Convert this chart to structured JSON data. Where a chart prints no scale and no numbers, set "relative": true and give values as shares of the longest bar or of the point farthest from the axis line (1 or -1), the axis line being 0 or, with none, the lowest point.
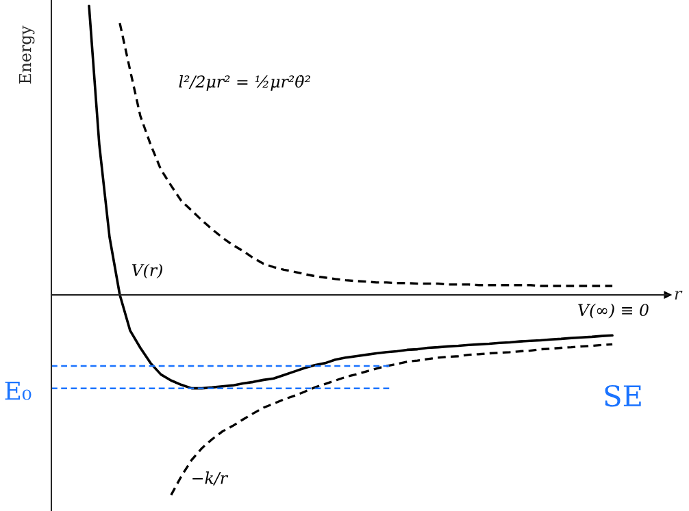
{
  "chart_data": {
    "type": "line",
    "relative": true,
    "ylabel": "Energy",
    "xlabel": "r",
    "categories": [
      null,
      null,
      null,
      null,
      null,
      null,
      null,
      null,
      null,
      null,
      null,
      null,
      null,
      null,
      null,
      null,
      null,
      null,
      null,
      null,
      null,
      null,
      null,
      null,
      null,
      null,
      null,
      null,
      null,
      null,
      null,
      null,
      null,
      null,
      null,
      null,
      null,
      null,
      null,
      null,
      null,
      null,
      null,
      null,
      null,
      null,
      null,
      null,
      null,
      null,
      null,
      null
    ],
    "series": [
      {
        "name": "V(r)",
        "color": "#000000",
        "line_style": "solid",
        "values": [
          1.0,
          0.52,
          0.2,
          0,
          -0.123,
          -0.183,
          -0.236,
          -0.275,
          -0.296,
          -0.311,
          -0.323,
          -0.323,
          -0.32,
          -0.316,
          -0.313,
          -0.306,
          -0.301,
          -0.294,
          -0.289,
          -0.277,
          -0.265,
          -0.253,
          -0.243,
          -0.236,
          -0.224,
          -0.217,
          -0.212,
          -0.207,
          -0.202,
          -0.198,
          -0.195,
          -0.19,
          -0.188,
          -0.183,
          -0.181,
          -0.178,
          -0.176,
          -0.173,
          -0.171,
          -0.169,
          -0.166,
          -0.164,
          -0.161,
          -0.159,
          -0.157,
          -0.154,
          -0.152,
          -0.149,
          -0.147,
          -0.145,
          -0.142,
          -0.14
        ]
      },
      {
        "name": "l²/2μr² = ½μr²θ̇²",
        "color": "#000000",
        "line_style": "dashed",
        "values": [
          null,
          null,
          null,
          0.94,
          0.778,
          0.619,
          0.52,
          0.434,
          0.378,
          0.325,
          0.292,
          0.258,
          0.227,
          0.198,
          0.173,
          0.152,
          0.128,
          0.108,
          0.096,
          0.087,
          0.08,
          0.072,
          0.065,
          0.06,
          0.055,
          0.051,
          0.048,
          0.046,
          0.043,
          0.043,
          0.041,
          0.041,
          0.039,
          0.039,
          0.039,
          0.036,
          0.036,
          0.036,
          0.034,
          0.034,
          0.034,
          0.034,
          0.034,
          0.034,
          0.031,
          0.031,
          0.031,
          0.031,
          0.031,
          0.031,
          0.031,
          0.031
        ]
      },
      {
        "name": "−k/r",
        "color": "#000000",
        "line_style": "dashed",
        "values": [
          null,
          null,
          null,
          null,
          null,
          null,
          null,
          null,
          -0.692,
          -0.627,
          -0.571,
          -0.53,
          -0.499,
          -0.472,
          -0.453,
          -0.431,
          -0.41,
          -0.39,
          -0.376,
          -0.361,
          -0.349,
          -0.335,
          -0.32,
          -0.308,
          -0.296,
          -0.284,
          -0.275,
          -0.265,
          -0.255,
          -0.246,
          -0.239,
          -0.231,
          -0.227,
          -0.222,
          -0.217,
          -0.214,
          -0.212,
          -0.207,
          -0.205,
          -0.202,
          -0.2,
          -0.198,
          -0.195,
          -0.193,
          -0.188,
          -0.186,
          -0.183,
          -0.181,
          -0.178,
          -0.176,
          -0.173,
          -0.171
        ]
      }
    ],
    "ref_lines": [
      {
        "axis": "y",
        "value": -0.246,
        "label": null,
        "color": "#1a73ff",
        "line_style": "dashed"
      },
      {
        "axis": "y",
        "value": -0.323,
        "label": "E₀",
        "color": "#1a73ff",
        "line_style": "dashed"
      }
    ],
    "annotations": [
      "V(∞) ≡ 0",
      "SE"
    ],
    "legend": false
  }
}
